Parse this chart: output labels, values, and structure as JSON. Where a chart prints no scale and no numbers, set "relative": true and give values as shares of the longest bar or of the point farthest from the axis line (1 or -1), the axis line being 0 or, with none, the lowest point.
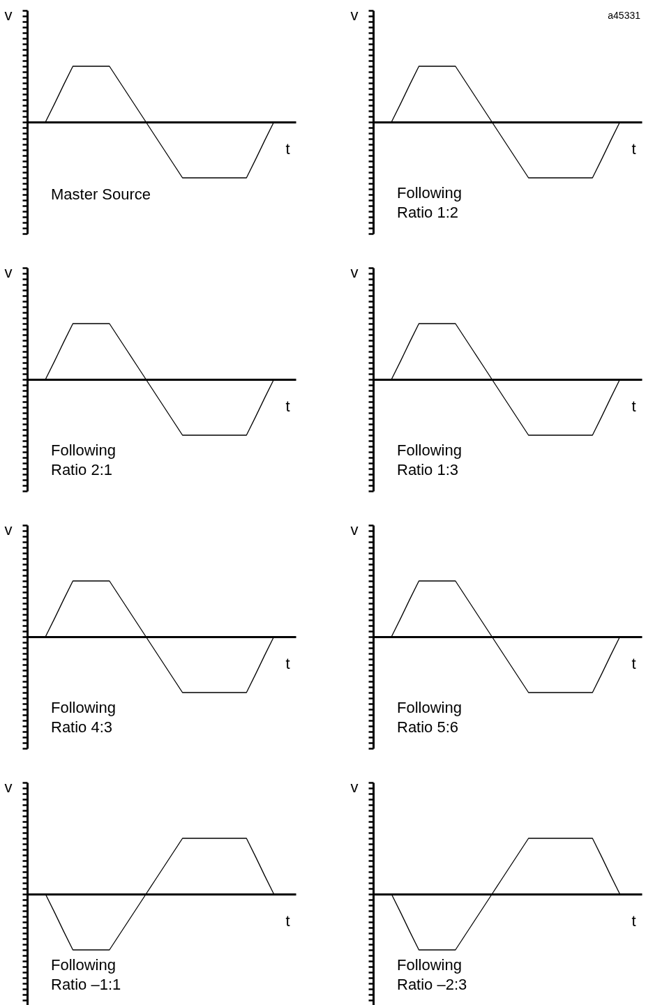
{
  "chart_data": [
    {
      "type": "line",
      "title": "Master Source",
      "xlabel": "t",
      "ylabel": "v",
      "relative": true,
      "categories": [
        null,
        null,
        null,
        null,
        null,
        null,
        null,
        null,
        null,
        null,
        null,
        null,
        null,
        null,
        null,
        null,
        null,
        null,
        null,
        null,
        null,
        null,
        null,
        null,
        null,
        null
      ],
      "series": [
        {
          "color": "#000000",
          "values": [
            0,
            0.33,
            0.67,
            1,
            1,
            1,
            1,
            1,
            0.75,
            0.5,
            0.25,
            0,
            -0.25,
            -0.5,
            -0.75,
            -1,
            -1,
            -1,
            -1,
            -1,
            -1,
            -1,
            -1,
            -0.67,
            -0.33,
            0
          ]
        }
      ]
    },
    {
      "type": "line",
      "title": "Following",
      "subtitle": "Ratio  1:2",
      "xlabel": "t",
      "ylabel": "v",
      "relative": true,
      "annotations": [
        "a45331"
      ],
      "categories": [
        null,
        null,
        null,
        null,
        null,
        null,
        null,
        null,
        null,
        null,
        null,
        null,
        null,
        null,
        null,
        null,
        null,
        null,
        null,
        null,
        null,
        null,
        null,
        null,
        null,
        null
      ],
      "series": [
        {
          "color": "#000000",
          "values": [
            0,
            0.33,
            0.67,
            1,
            1,
            1,
            1,
            1,
            0.75,
            0.5,
            0.25,
            0,
            -0.25,
            -0.5,
            -0.75,
            -1,
            -1,
            -1,
            -1,
            -1,
            -1,
            -1,
            -1,
            -0.67,
            -0.33,
            0
          ]
        }
      ]
    },
    {
      "type": "line",
      "title": "Following",
      "subtitle": "Ratio  2:1",
      "xlabel": "t",
      "ylabel": "v",
      "relative": true,
      "categories": [
        null,
        null,
        null,
        null,
        null,
        null,
        null,
        null,
        null,
        null,
        null,
        null,
        null,
        null,
        null,
        null,
        null,
        null,
        null,
        null,
        null,
        null,
        null,
        null,
        null,
        null
      ],
      "series": [
        {
          "color": "#000000",
          "values": [
            0,
            0.33,
            0.67,
            1,
            1,
            1,
            1,
            1,
            0.75,
            0.5,
            0.25,
            0,
            -0.25,
            -0.5,
            -0.75,
            -1,
            -1,
            -1,
            -1,
            -1,
            -1,
            -1,
            -1,
            -0.67,
            -0.33,
            0
          ]
        }
      ]
    },
    {
      "type": "line",
      "title": "Following",
      "subtitle": "Ratio  1:3",
      "xlabel": "t",
      "ylabel": "v",
      "relative": true,
      "categories": [
        null,
        null,
        null,
        null,
        null,
        null,
        null,
        null,
        null,
        null,
        null,
        null,
        null,
        null,
        null,
        null,
        null,
        null,
        null,
        null,
        null,
        null,
        null,
        null,
        null,
        null
      ],
      "series": [
        {
          "color": "#000000",
          "values": [
            0,
            0.33,
            0.67,
            1,
            1,
            1,
            1,
            1,
            0.75,
            0.5,
            0.25,
            0,
            -0.25,
            -0.5,
            -0.75,
            -1,
            -1,
            -1,
            -1,
            -1,
            -1,
            -1,
            -1,
            -0.67,
            -0.33,
            0
          ]
        }
      ]
    },
    {
      "type": "line",
      "title": "Following",
      "subtitle": "Ratio  4:3",
      "xlabel": "t",
      "ylabel": "v",
      "relative": true,
      "categories": [
        null,
        null,
        null,
        null,
        null,
        null,
        null,
        null,
        null,
        null,
        null,
        null,
        null,
        null,
        null,
        null,
        null,
        null,
        null,
        null,
        null,
        null,
        null,
        null,
        null,
        null
      ],
      "series": [
        {
          "color": "#000000",
          "values": [
            0,
            0.33,
            0.67,
            1,
            1,
            1,
            1,
            1,
            0.75,
            0.5,
            0.25,
            0,
            -0.25,
            -0.5,
            -0.75,
            -1,
            -1,
            -1,
            -1,
            -1,
            -1,
            -1,
            -1,
            -0.67,
            -0.33,
            0
          ]
        }
      ]
    },
    {
      "type": "line",
      "title": "Following",
      "subtitle": "Ratio  5:6",
      "xlabel": "t",
      "ylabel": "v",
      "relative": true,
      "categories": [
        null,
        null,
        null,
        null,
        null,
        null,
        null,
        null,
        null,
        null,
        null,
        null,
        null,
        null,
        null,
        null,
        null,
        null,
        null,
        null,
        null,
        null,
        null,
        null,
        null,
        null
      ],
      "series": [
        {
          "color": "#000000",
          "values": [
            0,
            0.33,
            0.67,
            1,
            1,
            1,
            1,
            1,
            0.75,
            0.5,
            0.25,
            0,
            -0.25,
            -0.5,
            -0.75,
            -1,
            -1,
            -1,
            -1,
            -1,
            -1,
            -1,
            -1,
            -0.67,
            -0.33,
            0
          ]
        }
      ]
    },
    {
      "type": "line",
      "title": "Following",
      "subtitle": "Ratio  –1:1",
      "xlabel": "t",
      "ylabel": "v",
      "relative": true,
      "categories": [
        null,
        null,
        null,
        null,
        null,
        null,
        null,
        null,
        null,
        null,
        null,
        null,
        null,
        null,
        null,
        null,
        null,
        null,
        null,
        null,
        null,
        null,
        null,
        null,
        null,
        null
      ],
      "series": [
        {
          "color": "#000000",
          "values": [
            0,
            -0.33,
            -0.67,
            -1,
            -1,
            -1,
            -1,
            -1,
            -0.75,
            -0.5,
            -0.25,
            0,
            0.25,
            0.5,
            0.75,
            1,
            1,
            1,
            1,
            1,
            1,
            1,
            1,
            0.67,
            0.33,
            0
          ]
        }
      ]
    },
    {
      "type": "line",
      "title": "Following",
      "subtitle": "Ratio  –2:3",
      "xlabel": "t",
      "ylabel": "v",
      "relative": true,
      "categories": [
        null,
        null,
        null,
        null,
        null,
        null,
        null,
        null,
        null,
        null,
        null,
        null,
        null,
        null,
        null,
        null,
        null,
        null,
        null,
        null,
        null,
        null,
        null,
        null,
        null,
        null
      ],
      "series": [
        {
          "color": "#000000",
          "values": [
            0,
            -0.33,
            -0.67,
            -1,
            -1,
            -1,
            -1,
            -1,
            -0.75,
            -0.5,
            -0.25,
            0,
            0.25,
            0.5,
            0.75,
            1,
            1,
            1,
            1,
            1,
            1,
            1,
            1,
            0.67,
            0.33,
            0
          ]
        }
      ]
    }
  ]
}
